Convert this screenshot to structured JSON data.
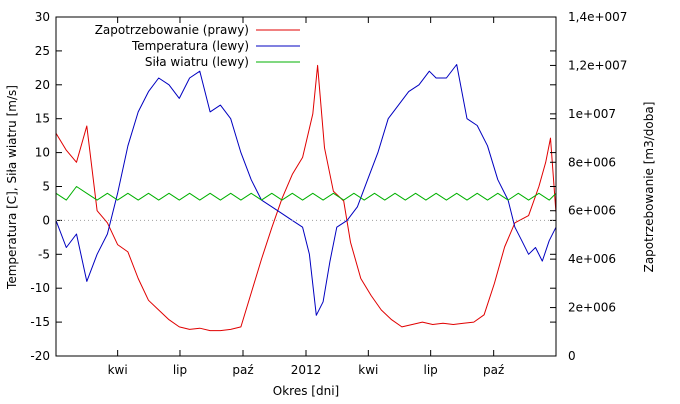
{
  "chart_data": {
    "type": "line",
    "xlabel": "Okres [dni]",
    "ylabel_left": "Temperatura [C], Siła wiatru [m/s]",
    "ylabel_right": "Zapotrzebowanie [m3/doba]",
    "left_axis": {
      "range": [
        -20,
        30
      ],
      "ticks": [
        -20,
        -15,
        -10,
        -5,
        0,
        5,
        10,
        15,
        20,
        25,
        30
      ]
    },
    "right_axis": {
      "range": [
        0,
        14000000
      ],
      "ticks": [
        0,
        2000000,
        4000000,
        6000000,
        8000000,
        10000000,
        12000000,
        14000000
      ],
      "tick_labels": [
        "0",
        "2e+006",
        "4e+006",
        "6e+006",
        "8e+006",
        "1e+007",
        "1,2e+007",
        "1,4e+007"
      ]
    },
    "x_range": [
      0,
      730
    ],
    "x_ticks": [
      {
        "x": 90,
        "label": "kwi"
      },
      {
        "x": 181,
        "label": "lip"
      },
      {
        "x": 273,
        "label": "paź"
      },
      {
        "x": 365,
        "label": "2012"
      },
      {
        "x": 456,
        "label": "kwi"
      },
      {
        "x": 547,
        "label": "lip"
      },
      {
        "x": 639,
        "label": "paź"
      }
    ],
    "zero_line": {
      "value": 0,
      "style": "dotted"
    },
    "legend_position": "top-left",
    "series": [
      {
        "name": "Zapotrzebowanie (prawy)",
        "axis": "right",
        "color": "#e00000",
        "points": [
          [
            0,
            9200000
          ],
          [
            15,
            8500000
          ],
          [
            30,
            8000000
          ],
          [
            45,
            9500000
          ],
          [
            60,
            6000000
          ],
          [
            75,
            5500000
          ],
          [
            90,
            4600000
          ],
          [
            105,
            4300000
          ],
          [
            120,
            3200000
          ],
          [
            135,
            2300000
          ],
          [
            150,
            1900000
          ],
          [
            165,
            1500000
          ],
          [
            180,
            1200000
          ],
          [
            195,
            1100000
          ],
          [
            210,
            1150000
          ],
          [
            225,
            1050000
          ],
          [
            240,
            1050000
          ],
          [
            255,
            1100000
          ],
          [
            270,
            1200000
          ],
          [
            285,
            2600000
          ],
          [
            300,
            4000000
          ],
          [
            315,
            5300000
          ],
          [
            330,
            6500000
          ],
          [
            345,
            7500000
          ],
          [
            360,
            8200000
          ],
          [
            375,
            10000000
          ],
          [
            382,
            12000000
          ],
          [
            392,
            8600000
          ],
          [
            405,
            6800000
          ],
          [
            420,
            6400000
          ],
          [
            430,
            4700000
          ],
          [
            445,
            3200000
          ],
          [
            460,
            2500000
          ],
          [
            475,
            1900000
          ],
          [
            490,
            1500000
          ],
          [
            505,
            1200000
          ],
          [
            520,
            1300000
          ],
          [
            535,
            1400000
          ],
          [
            550,
            1300000
          ],
          [
            565,
            1350000
          ],
          [
            580,
            1300000
          ],
          [
            595,
            1350000
          ],
          [
            610,
            1400000
          ],
          [
            625,
            1700000
          ],
          [
            640,
            3000000
          ],
          [
            655,
            4500000
          ],
          [
            670,
            5500000
          ],
          [
            690,
            5800000
          ],
          [
            705,
            7000000
          ],
          [
            715,
            8000000
          ],
          [
            722,
            9000000
          ],
          [
            730,
            5900000
          ]
        ]
      },
      {
        "name": "Temperatura (lewy)",
        "axis": "left",
        "color": "#0000c0",
        "points": [
          [
            0,
            0
          ],
          [
            15,
            -4
          ],
          [
            30,
            -2
          ],
          [
            45,
            -9
          ],
          [
            60,
            -5
          ],
          [
            75,
            -2
          ],
          [
            90,
            4
          ],
          [
            105,
            11
          ],
          [
            120,
            16
          ],
          [
            135,
            19
          ],
          [
            150,
            21
          ],
          [
            165,
            20
          ],
          [
            180,
            18
          ],
          [
            195,
            21
          ],
          [
            210,
            22
          ],
          [
            225,
            16
          ],
          [
            240,
            17
          ],
          [
            255,
            15
          ],
          [
            270,
            10
          ],
          [
            285,
            6
          ],
          [
            300,
            3
          ],
          [
            315,
            2
          ],
          [
            330,
            1
          ],
          [
            345,
            0
          ],
          [
            360,
            -1
          ],
          [
            370,
            -5
          ],
          [
            380,
            -14
          ],
          [
            390,
            -12
          ],
          [
            400,
            -6
          ],
          [
            410,
            -1
          ],
          [
            425,
            0
          ],
          [
            440,
            2
          ],
          [
            455,
            6
          ],
          [
            470,
            10
          ],
          [
            485,
            15
          ],
          [
            500,
            17
          ],
          [
            515,
            19
          ],
          [
            530,
            20
          ],
          [
            545,
            22
          ],
          [
            555,
            21
          ],
          [
            570,
            21
          ],
          [
            585,
            23
          ],
          [
            600,
            15
          ],
          [
            615,
            14
          ],
          [
            630,
            11
          ],
          [
            645,
            6
          ],
          [
            660,
            3
          ],
          [
            670,
            -1
          ],
          [
            680,
            -3
          ],
          [
            690,
            -5
          ],
          [
            700,
            -4
          ],
          [
            710,
            -6
          ],
          [
            720,
            -3
          ],
          [
            730,
            -1
          ]
        ]
      },
      {
        "name": "Siła wiatru (lewy)",
        "axis": "left",
        "color": "#00b000",
        "points": [
          [
            0,
            4
          ],
          [
            15,
            3
          ],
          [
            30,
            5
          ],
          [
            45,
            4
          ],
          [
            60,
            3
          ],
          [
            75,
            4
          ],
          [
            90,
            3
          ],
          [
            105,
            4
          ],
          [
            120,
            3
          ],
          [
            135,
            4
          ],
          [
            150,
            3
          ],
          [
            165,
            4
          ],
          [
            180,
            3
          ],
          [
            195,
            4
          ],
          [
            210,
            3
          ],
          [
            225,
            4
          ],
          [
            240,
            3
          ],
          [
            255,
            4
          ],
          [
            270,
            3
          ],
          [
            285,
            4
          ],
          [
            300,
            3
          ],
          [
            315,
            4
          ],
          [
            330,
            3
          ],
          [
            345,
            4
          ],
          [
            360,
            3
          ],
          [
            375,
            4
          ],
          [
            390,
            3
          ],
          [
            405,
            4
          ],
          [
            420,
            3
          ],
          [
            435,
            4
          ],
          [
            450,
            3
          ],
          [
            465,
            4
          ],
          [
            480,
            3
          ],
          [
            495,
            4
          ],
          [
            510,
            3
          ],
          [
            525,
            4
          ],
          [
            540,
            3
          ],
          [
            555,
            4
          ],
          [
            570,
            3
          ],
          [
            585,
            4
          ],
          [
            600,
            3
          ],
          [
            615,
            4
          ],
          [
            630,
            3
          ],
          [
            645,
            4
          ],
          [
            660,
            3
          ],
          [
            675,
            4
          ],
          [
            690,
            3
          ],
          [
            705,
            4
          ],
          [
            720,
            3
          ],
          [
            730,
            4
          ]
        ]
      }
    ]
  }
}
